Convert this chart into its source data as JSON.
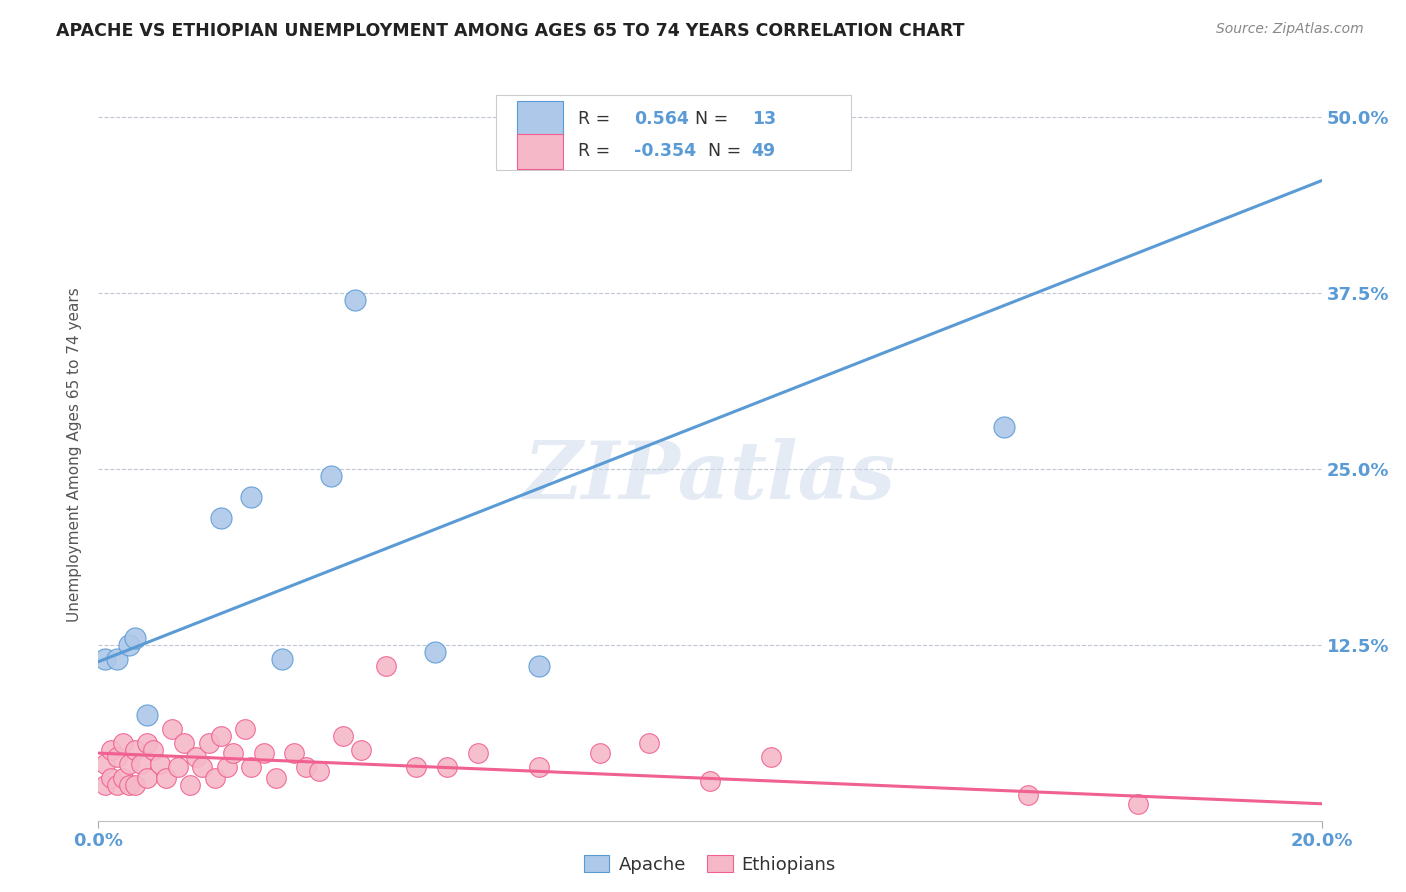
{
  "title": "APACHE VS ETHIOPIAN UNEMPLOYMENT AMONG AGES 65 TO 74 YEARS CORRELATION CHART",
  "source": "Source: ZipAtlas.com",
  "ylabel": "Unemployment Among Ages 65 to 74 years",
  "ytick_labels": [
    "12.5%",
    "25.0%",
    "37.5%",
    "50.0%"
  ],
  "ytick_values": [
    0.125,
    0.25,
    0.375,
    0.5
  ],
  "xlim": [
    0.0,
    0.2
  ],
  "ylim": [
    0.0,
    0.52
  ],
  "apache_R": 0.564,
  "apache_N": 13,
  "ethiopian_R": -0.354,
  "ethiopian_N": 49,
  "apache_color": "#adc8e8",
  "ethiopian_color": "#f5b8c8",
  "apache_line_color": "#5b9bd5",
  "ethiopian_line_color": "#f06090",
  "watermark_text": "ZIPatlas",
  "apache_x": [
    0.001,
    0.003,
    0.005,
    0.006,
    0.008,
    0.02,
    0.025,
    0.03,
    0.038,
    0.042,
    0.055,
    0.072,
    0.148
  ],
  "apache_y": [
    0.115,
    0.115,
    0.125,
    0.13,
    0.075,
    0.215,
    0.23,
    0.115,
    0.245,
    0.37,
    0.12,
    0.11,
    0.28
  ],
  "ethiopian_x": [
    0.001,
    0.001,
    0.002,
    0.002,
    0.003,
    0.003,
    0.004,
    0.004,
    0.005,
    0.005,
    0.006,
    0.006,
    0.007,
    0.008,
    0.008,
    0.009,
    0.01,
    0.011,
    0.012,
    0.013,
    0.014,
    0.015,
    0.016,
    0.017,
    0.018,
    0.019,
    0.02,
    0.021,
    0.022,
    0.024,
    0.025,
    0.027,
    0.029,
    0.032,
    0.034,
    0.036,
    0.04,
    0.043,
    0.047,
    0.052,
    0.057,
    0.062,
    0.072,
    0.082,
    0.09,
    0.1,
    0.11,
    0.152,
    0.17
  ],
  "ethiopian_y": [
    0.025,
    0.04,
    0.03,
    0.05,
    0.025,
    0.045,
    0.03,
    0.055,
    0.025,
    0.04,
    0.025,
    0.05,
    0.04,
    0.03,
    0.055,
    0.05,
    0.04,
    0.03,
    0.065,
    0.038,
    0.055,
    0.025,
    0.045,
    0.038,
    0.055,
    0.03,
    0.06,
    0.038,
    0.048,
    0.065,
    0.038,
    0.048,
    0.03,
    0.048,
    0.038,
    0.035,
    0.06,
    0.05,
    0.11,
    0.038,
    0.038,
    0.048,
    0.038,
    0.048,
    0.055,
    0.028,
    0.045,
    0.018,
    0.012
  ],
  "apache_line_x0": 0.0,
  "apache_line_y0": 0.113,
  "apache_line_x1": 0.2,
  "apache_line_y1": 0.455,
  "ethiopian_line_x0": 0.0,
  "ethiopian_line_y0": 0.048,
  "ethiopian_line_x1": 0.2,
  "ethiopian_line_y1": 0.012
}
